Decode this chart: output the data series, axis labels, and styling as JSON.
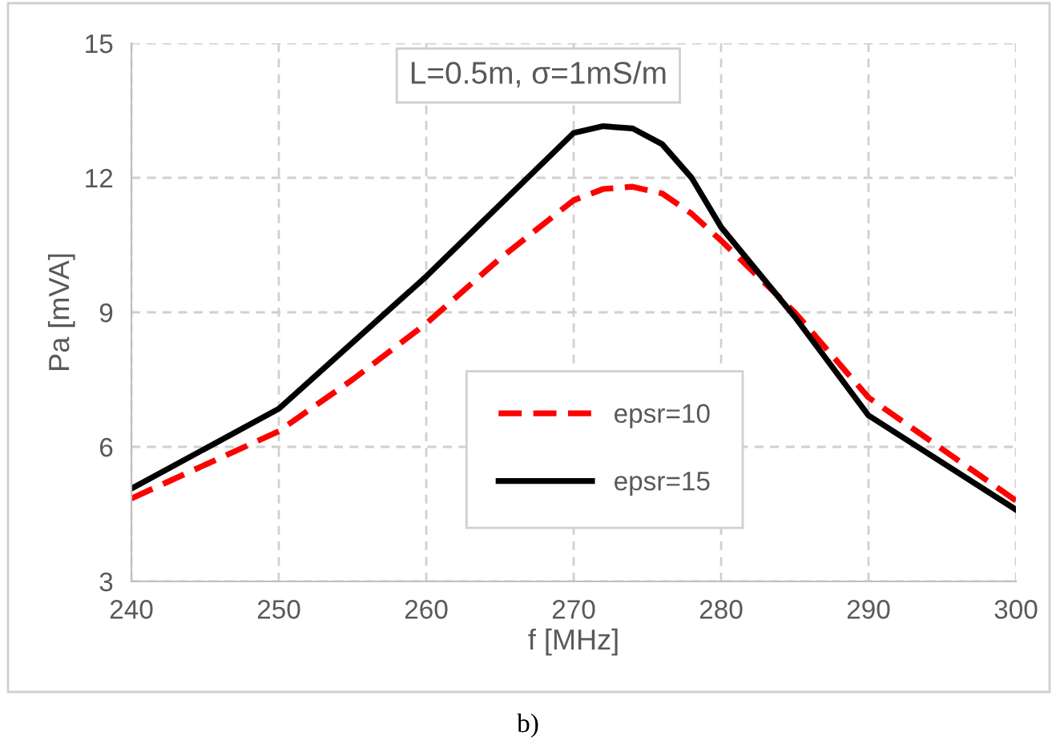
{
  "chart_data": {
    "type": "line",
    "xlabel": "f [MHz]",
    "ylabel": "Pa [mVA]",
    "xlim": [
      240,
      300
    ],
    "xticks": [
      240,
      250,
      260,
      270,
      280,
      290,
      300
    ],
    "ylim": [
      3,
      15
    ],
    "yticks": [
      3,
      6,
      9,
      12,
      15
    ],
    "grid": true,
    "legend": "center",
    "marker": "none",
    "annotations": [
      "L=0.5m, σ=1mS/m",
      "b)"
    ],
    "series": [
      {
        "name": "epsr=10",
        "color": "#ff0000",
        "line_style": "dashed",
        "x": [
          240,
          250,
          255,
          260,
          265,
          270,
          272,
          274,
          276,
          278,
          280,
          285,
          290,
          300
        ],
        "values": [
          4.85,
          6.35,
          7.5,
          8.75,
          10.2,
          11.5,
          11.75,
          11.8,
          11.65,
          11.2,
          10.6,
          9.0,
          7.1,
          4.8
        ]
      },
      {
        "name": "epsr=15",
        "color": "#000000",
        "line_style": "solid",
        "x": [
          240,
          250,
          260,
          270,
          272,
          274,
          276,
          278,
          280,
          285,
          290,
          300
        ],
        "values": [
          5.07,
          6.85,
          9.8,
          13.0,
          13.15,
          13.1,
          12.75,
          12.0,
          10.9,
          8.9,
          6.7,
          4.6
        ]
      }
    ]
  }
}
